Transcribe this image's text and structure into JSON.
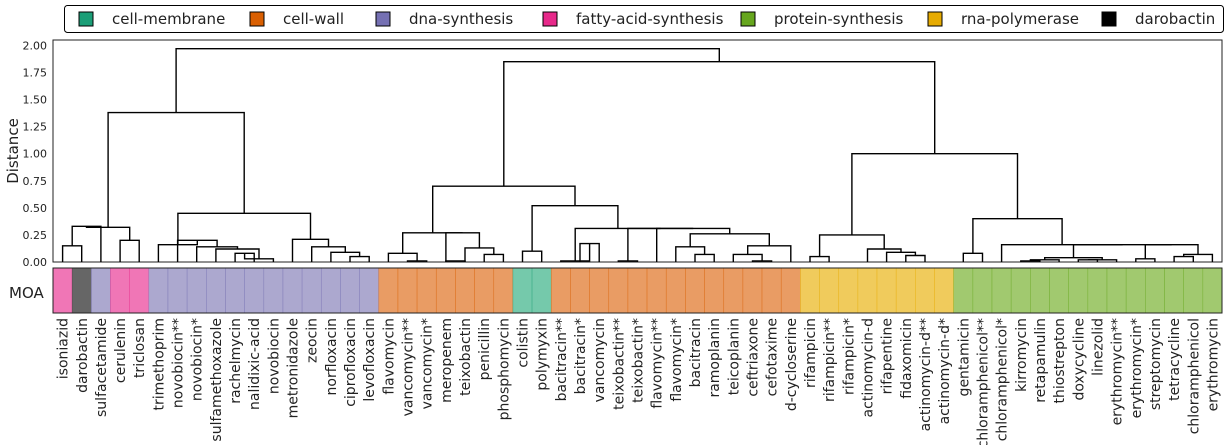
{
  "chart_data": {
    "type": "dendrogram",
    "ylabel": "Distance",
    "ylim": [
      0,
      2.05
    ],
    "yticks": [
      "0.00",
      "0.25",
      "0.50",
      "0.75",
      "1.00",
      "1.25",
      "1.50",
      "1.75",
      "2.00"
    ],
    "ytick_values": [
      0,
      0.25,
      0.5,
      0.75,
      1.0,
      1.25,
      1.5,
      1.75,
      2.0
    ],
    "grid": false,
    "legend_position": "top",
    "moa_label": "MOA",
    "legend": [
      {
        "label": "cell-membrane",
        "color": "#1b9e77"
      },
      {
        "label": "cell-wall",
        "color": "#d95f02"
      },
      {
        "label": "dna-synthesis",
        "color": "#7570b3"
      },
      {
        "label": "fatty-acid-synthesis",
        "color": "#e7298a"
      },
      {
        "label": "protein-synthesis",
        "color": "#66a61e"
      },
      {
        "label": "rna-polymerase",
        "color": "#e6ab02"
      },
      {
        "label": "darobactin",
        "color": "#000000"
      }
    ],
    "moa_colors": {
      "cell-membrane": "#75c9ab",
      "cell-wall": "#e99c64",
      "dna-synthesis": "#aca8cf",
      "fatty-acid-synthesis": "#f076b6",
      "protein-synthesis": "#a1c96f",
      "rna-polymerase": "#f0cb5c",
      "darobactin": "#666666"
    },
    "leaves": [
      {
        "name": "isoniazid",
        "moa": "fatty-acid-synthesis"
      },
      {
        "name": "darobactin",
        "moa": "darobactin"
      },
      {
        "name": "sulfacetamide",
        "moa": "dna-synthesis"
      },
      {
        "name": "cerulenin",
        "moa": "fatty-acid-synthesis"
      },
      {
        "name": "triclosan",
        "moa": "fatty-acid-synthesis"
      },
      {
        "name": "trimethoprim",
        "moa": "dna-synthesis"
      },
      {
        "name": "novobiocin**",
        "moa": "dna-synthesis"
      },
      {
        "name": "novobiocin*",
        "moa": "dna-synthesis"
      },
      {
        "name": "sulfamethoxazole",
        "moa": "dna-synthesis"
      },
      {
        "name": "rachelmycin",
        "moa": "dna-synthesis"
      },
      {
        "name": "nalidixic-acid",
        "moa": "dna-synthesis"
      },
      {
        "name": "novobiocin",
        "moa": "dna-synthesis"
      },
      {
        "name": "metronidazole",
        "moa": "dna-synthesis"
      },
      {
        "name": "zeocin",
        "moa": "dna-synthesis"
      },
      {
        "name": "norfloxacin",
        "moa": "dna-synthesis"
      },
      {
        "name": "ciprofloxacin",
        "moa": "dna-synthesis"
      },
      {
        "name": "levofloxacin",
        "moa": "dna-synthesis"
      },
      {
        "name": "flavomycin",
        "moa": "cell-wall"
      },
      {
        "name": "vancomycin**",
        "moa": "cell-wall"
      },
      {
        "name": "vancomycin*",
        "moa": "cell-wall"
      },
      {
        "name": "meropenem",
        "moa": "cell-wall"
      },
      {
        "name": "teixobactin",
        "moa": "cell-wall"
      },
      {
        "name": "penicillin",
        "moa": "cell-wall"
      },
      {
        "name": "phosphomycin",
        "moa": "cell-wall"
      },
      {
        "name": "colistin",
        "moa": "cell-membrane"
      },
      {
        "name": "polymyxin",
        "moa": "cell-membrane"
      },
      {
        "name": "bacitracin**",
        "moa": "cell-wall"
      },
      {
        "name": "bacitracin*",
        "moa": "cell-wall"
      },
      {
        "name": "vancomycin",
        "moa": "cell-wall"
      },
      {
        "name": "teixobactin**",
        "moa": "cell-wall"
      },
      {
        "name": "teixobactin*",
        "moa": "cell-wall"
      },
      {
        "name": "flavomycin**",
        "moa": "cell-wall"
      },
      {
        "name": "flavomycin*",
        "moa": "cell-wall"
      },
      {
        "name": "bacitracin",
        "moa": "cell-wall"
      },
      {
        "name": "ramoplanin",
        "moa": "cell-wall"
      },
      {
        "name": "teicoplanin",
        "moa": "cell-wall"
      },
      {
        "name": "ceftriaxone",
        "moa": "cell-wall"
      },
      {
        "name": "cefotaxime",
        "moa": "cell-wall"
      },
      {
        "name": "d-cycloserine",
        "moa": "cell-wall"
      },
      {
        "name": "rifampicin",
        "moa": "rna-polymerase"
      },
      {
        "name": "rifampicin**",
        "moa": "rna-polymerase"
      },
      {
        "name": "rifampicin*",
        "moa": "rna-polymerase"
      },
      {
        "name": "actinomycin-d",
        "moa": "rna-polymerase"
      },
      {
        "name": "rifapentine",
        "moa": "rna-polymerase"
      },
      {
        "name": "fidaxomicin",
        "moa": "rna-polymerase"
      },
      {
        "name": "actinomycin-d**",
        "moa": "rna-polymerase"
      },
      {
        "name": "actinomycin-d*",
        "moa": "rna-polymerase"
      },
      {
        "name": "gentamicin",
        "moa": "protein-synthesis"
      },
      {
        "name": "chloramphenicol**",
        "moa": "protein-synthesis"
      },
      {
        "name": "chloramphenicol*",
        "moa": "protein-synthesis"
      },
      {
        "name": "kirromycin",
        "moa": "protein-synthesis"
      },
      {
        "name": "retapamulin",
        "moa": "protein-synthesis"
      },
      {
        "name": "thiostrepton",
        "moa": "protein-synthesis"
      },
      {
        "name": "doxycycline",
        "moa": "protein-synthesis"
      },
      {
        "name": "linezolid",
        "moa": "protein-synthesis"
      },
      {
        "name": "erythromycin**",
        "moa": "protein-synthesis"
      },
      {
        "name": "erythromycin*",
        "moa": "protein-synthesis"
      },
      {
        "name": "streptomycin",
        "moa": "protein-synthesis"
      },
      {
        "name": "tetracycline",
        "moa": "protein-synthesis"
      },
      {
        "name": "chloramphenicol",
        "moa": "protein-synthesis"
      },
      {
        "name": "erythromycin",
        "moa": "protein-synthesis"
      }
    ],
    "links": [
      {
        "a": "L0",
        "b": "L1",
        "h": 0.15
      },
      {
        "a": "L3",
        "b": "L4",
        "h": 0.2
      },
      {
        "a": "N0",
        "b": "L2",
        "h": 0.33
      },
      {
        "a": "N2",
        "b": "N1",
        "h": 0.32
      },
      {
        "a": "L9",
        "b": "L10",
        "h": 0.08
      },
      {
        "a": "N4",
        "b": "L11",
        "h": 0.03
      },
      {
        "a": "L8",
        "b": "N5",
        "h": 0.12
      },
      {
        "a": "L7",
        "b": "N6",
        "h": 0.14
      },
      {
        "a": "L6",
        "b": "N7",
        "h": 0.2
      },
      {
        "a": "L5",
        "b": "N8",
        "h": 0.16
      },
      {
        "a": "L15",
        "b": "L16",
        "h": 0.05
      },
      {
        "a": "L14",
        "b": "N10",
        "h": 0.09
      },
      {
        "a": "L13",
        "b": "N11",
        "h": 0.14
      },
      {
        "a": "L12",
        "b": "N12",
        "h": 0.21
      },
      {
        "a": "N9",
        "b": "N13",
        "h": 0.45
      },
      {
        "a": "N3",
        "b": "N14",
        "h": 1.38
      },
      {
        "a": "L18",
        "b": "L19",
        "h": 0.01
      },
      {
        "a": "L17",
        "b": "N16",
        "h": 0.08
      },
      {
        "a": "L20",
        "b": "L21",
        "h": 0.01
      },
      {
        "a": "L22",
        "b": "L23",
        "h": 0.07
      },
      {
        "a": "L21",
        "b": "N19",
        "h": 0.13
      },
      {
        "a": "L20",
        "b": "N20",
        "h": 0.27
      },
      {
        "a": "N17",
        "b": "N21",
        "h": 0.27
      },
      {
        "a": "L24",
        "b": "L25",
        "h": 0.1
      },
      {
        "a": "L27",
        "b": "L28",
        "h": 0.17
      },
      {
        "a": "L26",
        "b": "N24",
        "h": 0.01
      },
      {
        "a": "L29",
        "b": "L30",
        "h": 0.01
      },
      {
        "a": "L33",
        "b": "L34",
        "h": 0.07
      },
      {
        "a": "L32",
        "b": "N27",
        "h": 0.14
      },
      {
        "a": "L36",
        "b": "L37",
        "h": 0.01
      },
      {
        "a": "L35",
        "b": "N29",
        "h": 0.07
      },
      {
        "a": "N30",
        "b": "L38",
        "h": 0.15
      },
      {
        "a": "N28",
        "b": "N31",
        "h": 0.26
      },
      {
        "a": "L31",
        "b": "N32",
        "h": 0.31
      },
      {
        "a": "N26",
        "b": "N33",
        "h": 0.31
      },
      {
        "a": "N25",
        "b": "N34",
        "h": 0.31
      },
      {
        "a": "N23",
        "b": "N35",
        "h": 0.52
      },
      {
        "a": "N22",
        "b": "N36",
        "h": 0.7
      },
      {
        "a": "L39",
        "b": "L40",
        "h": 0.05
      },
      {
        "a": "L44",
        "b": "L45",
        "h": 0.06
      },
      {
        "a": "L43",
        "b": "N39",
        "h": 0.09
      },
      {
        "a": "L42",
        "b": "N40",
        "h": 0.12
      },
      {
        "a": "N38",
        "b": "N41",
        "h": 0.25
      },
      {
        "a": "L47",
        "b": "L48",
        "h": 0.08
      },
      {
        "a": "L50",
        "b": "L51",
        "h": 0.01
      },
      {
        "a": "N44",
        "b": "L52",
        "h": 0.02
      },
      {
        "a": "L53",
        "b": "L54",
        "h": 0.02
      },
      {
        "a": "N46",
        "b": "L55",
        "h": 0.02
      },
      {
        "a": "N45",
        "b": "N47",
        "h": 0.04
      },
      {
        "a": "L56",
        "b": "L57",
        "h": 0.03
      },
      {
        "a": "L58",
        "b": "L59",
        "h": 0.05
      },
      {
        "a": "N50",
        "b": "L60",
        "h": 0.07
      },
      {
        "a": "N49",
        "b": "N51",
        "h": 0.16
      },
      {
        "a": "N48",
        "b": "N52",
        "h": 0.16
      },
      {
        "a": "L49",
        "b": "N53",
        "h": 0.16
      },
      {
        "a": "N43",
        "b": "N54",
        "h": 0.4
      },
      {
        "a": "N42",
        "b": "N55",
        "h": 1.0
      },
      {
        "a": "N37",
        "b": "N56",
        "h": 1.85
      },
      {
        "a": "N15",
        "b": "N57",
        "h": 1.97
      }
    ]
  }
}
